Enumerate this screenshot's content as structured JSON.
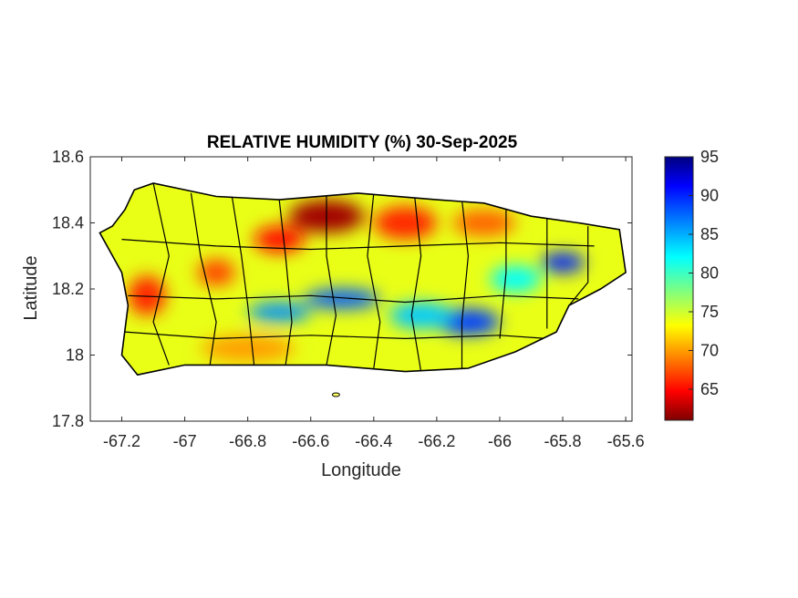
{
  "title": "RELATIVE HUMIDITY (%) 30-Sep-2025",
  "xlabel": "Longitude",
  "ylabel": "Latitude",
  "chart_data": {
    "type": "heatmap",
    "title": "RELATIVE HUMIDITY (%) 30-Sep-2025",
    "xlabel": "Longitude",
    "ylabel": "Latitude",
    "xlim": [
      -67.3,
      -65.58
    ],
    "ylim": [
      17.8,
      18.6
    ],
    "x_ticks": [
      -67.2,
      -67,
      -66.8,
      -66.6,
      -66.4,
      -66.2,
      -66,
      -65.8,
      -65.6
    ],
    "x_tick_labels": [
      "-67.2",
      "-67",
      "-66.8",
      "-66.6",
      "-66.4",
      "-66.2",
      "-66",
      "-65.8",
      "-65.6"
    ],
    "y_ticks": [
      18.6,
      18.4,
      18.2,
      18,
      17.8
    ],
    "y_tick_labels": [
      "18.6",
      "18.4",
      "18.2",
      "18",
      "17.8"
    ],
    "colorbar": {
      "colormap": "jet",
      "range": [
        61,
        95
      ],
      "ticks": [
        65,
        70,
        75,
        80,
        85,
        90,
        95
      ],
      "tick_labels": [
        "65",
        "70",
        "75",
        "80",
        "85",
        "90",
        "95"
      ]
    },
    "coastline_lonlat": [
      [
        -67.27,
        18.37
      ],
      [
        -67.23,
        18.39
      ],
      [
        -67.19,
        18.44
      ],
      [
        -67.16,
        18.5
      ],
      [
        -67.1,
        18.52
      ],
      [
        -66.9,
        18.48
      ],
      [
        -66.7,
        18.47
      ],
      [
        -66.45,
        18.49
      ],
      [
        -66.2,
        18.47
      ],
      [
        -66.05,
        18.46
      ],
      [
        -65.9,
        18.42
      ],
      [
        -65.75,
        18.4
      ],
      [
        -65.62,
        18.38
      ],
      [
        -65.6,
        18.25
      ],
      [
        -65.68,
        18.2
      ],
      [
        -65.78,
        18.15
      ],
      [
        -65.82,
        18.07
      ],
      [
        -65.95,
        18.01
      ],
      [
        -66.1,
        17.96
      ],
      [
        -66.3,
        17.95
      ],
      [
        -66.55,
        17.97
      ],
      [
        -66.85,
        17.97
      ],
      [
        -67.0,
        17.97
      ],
      [
        -67.15,
        17.94
      ],
      [
        -67.2,
        18.0
      ],
      [
        -67.18,
        18.15
      ],
      [
        -67.2,
        18.25
      ],
      [
        -67.27,
        18.37
      ]
    ],
    "islands_lonlat": [
      [
        -66.52,
        17.88
      ]
    ],
    "field_features": [
      {
        "lon": -66.55,
        "lat": 18.42,
        "rh": 62,
        "spread_lon": 0.12,
        "spread_lat": 0.05
      },
      {
        "lon": -66.3,
        "lat": 18.4,
        "rh": 66,
        "spread_lon": 0.1,
        "spread_lat": 0.05
      },
      {
        "lon": -66.05,
        "lat": 18.4,
        "rh": 68,
        "spread_lon": 0.1,
        "spread_lat": 0.04
      },
      {
        "lon": -66.7,
        "lat": 18.35,
        "rh": 65,
        "spread_lon": 0.08,
        "spread_lat": 0.04
      },
      {
        "lon": -66.7,
        "lat": 18.13,
        "rh": 86,
        "spread_lon": 0.1,
        "spread_lat": 0.03
      },
      {
        "lon": -66.5,
        "lat": 18.17,
        "rh": 88,
        "spread_lon": 0.12,
        "spread_lat": 0.03
      },
      {
        "lon": -66.1,
        "lat": 18.1,
        "rh": 89,
        "spread_lon": 0.1,
        "spread_lat": 0.04
      },
      {
        "lon": -66.25,
        "lat": 18.12,
        "rh": 84,
        "spread_lon": 0.1,
        "spread_lat": 0.04
      },
      {
        "lon": -65.8,
        "lat": 18.28,
        "rh": 90,
        "spread_lon": 0.07,
        "spread_lat": 0.03
      },
      {
        "lon": -65.95,
        "lat": 18.23,
        "rh": 82,
        "spread_lon": 0.08,
        "spread_lat": 0.04
      },
      {
        "lon": -67.12,
        "lat": 18.18,
        "rh": 66,
        "spread_lon": 0.06,
        "spread_lat": 0.06
      },
      {
        "lon": -66.9,
        "lat": 18.25,
        "rh": 67,
        "spread_lon": 0.06,
        "spread_lat": 0.04
      },
      {
        "lon": -66.8,
        "lat": 18.02,
        "rh": 70,
        "spread_lon": 0.15,
        "spread_lat": 0.04
      }
    ]
  }
}
